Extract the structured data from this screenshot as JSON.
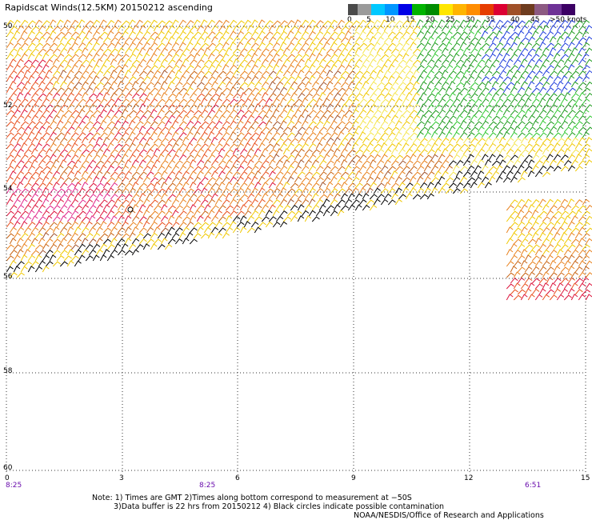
{
  "title": "Rapidscat Winds(12.5KM) 20150212 ascending",
  "legend": {
    "colors": [
      "#4a4a4a",
      "#9a9a9a",
      "#00c8ff",
      "#0096ff",
      "#0000e6",
      "#00b400",
      "#008c00",
      "#ffe600",
      "#ffb400",
      "#ff8c00",
      "#e63c00",
      "#dc0032",
      "#a05028",
      "#6e3c1e",
      "#8c5a82",
      "#6e3296",
      "#3c0064"
    ],
    "labels": [
      "0",
      "5",
      "10",
      "15",
      "20",
      "25",
      "30",
      "35",
      "40",
      "45",
      ">50 knots"
    ]
  },
  "axes": {
    "y_labels": [
      "50",
      "52",
      "54",
      "56",
      "58",
      "60"
    ],
    "x_labels": [
      "0",
      "3",
      "6",
      "9",
      "12",
      "15"
    ],
    "time_labels": [
      "8:25",
      "8:25",
      "6:51"
    ]
  },
  "notes": {
    "line1": "Note: 1) Times are GMT 2)Times along bottom correspond to measurement at −50S",
    "line2": "3)Data buffer is 22 hrs from 20150212 4) Black circles indicate possible contamination",
    "credit": "NOAA/NESDIS/Office of Research and Applications"
  }
}
